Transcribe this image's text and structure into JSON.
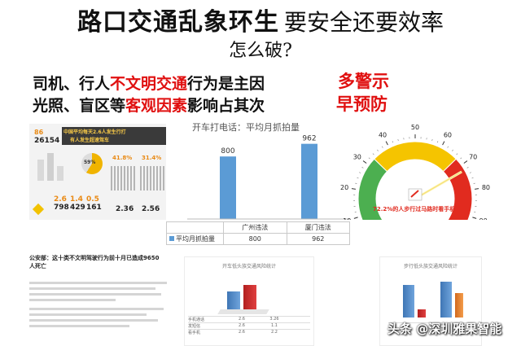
{
  "header": {
    "title_main": "路口交通乱象环生",
    "title_rest": "要安全还要效率",
    "subtitle": "怎么破?"
  },
  "points": {
    "line1_pre": "司机、行人",
    "line1_red": "不文明交通",
    "line1_post": "行为是主因",
    "line2_pre": "光照、盲区等",
    "line2_red": "客观因素",
    "line2_post": "影响占其次"
  },
  "warnings": {
    "line1": "多警示",
    "line2": "早预防"
  },
  "infographic": {
    "headline_line1": "中国平均每天2.6人发生行打",
    "headline_line2": "有人发生超速驾车",
    "stat_main": "26154",
    "stat_small": "86",
    "pct_1": "59%",
    "pct_2": "41.8%",
    "pct_3": "31.4%",
    "num_1": "2.6",
    "num_2": "1.4",
    "num_3": "0.5",
    "num_4": "798",
    "num_5": "429",
    "num_6": "161",
    "num_7": "2.36",
    "num_8": "2.56"
  },
  "chart_data": {
    "type": "bar",
    "title": "开车打电话：平均月抓拍量",
    "categories": [
      "广州违法",
      "厦门违法"
    ],
    "series": [
      {
        "name": "平均月抓拍量",
        "values": [
          800,
          962
        ]
      }
    ],
    "ylim": [
      0,
      1000
    ],
    "grid": false,
    "legend": "table-bottom",
    "table_values": [
      "800",
      "962"
    ],
    "bar_color": "#5b9bd5"
  },
  "gauge": {
    "ticks": [
      "0",
      "10",
      "20",
      "30",
      "40",
      "50",
      "60",
      "70",
      "80",
      "90",
      "100"
    ],
    "caption_pct": "72.2%",
    "caption_text": "的人步行过马路时看手机",
    "colors": {
      "green": "#4caf50",
      "yellow": "#f5c400",
      "red": "#e12b1f"
    }
  },
  "article": {
    "title_line1": "公安部：这十类不文明驾驶行为前十月已造成9650",
    "title_line2": "人死亡"
  },
  "mini_charts": {
    "left_title": "开车低头族交通风险统计",
    "right_title": "步行低头族交通风险统计",
    "left_rows": [
      {
        "label": "手机通话",
        "a": "2.6",
        "b": "3.26"
      },
      {
        "label": "发短信",
        "a": "2.6",
        "b": "1.1"
      },
      {
        "label": "看手机",
        "a": "2.6",
        "b": "2.2"
      }
    ]
  },
  "watermark": "头条 @深圳雅果智能"
}
